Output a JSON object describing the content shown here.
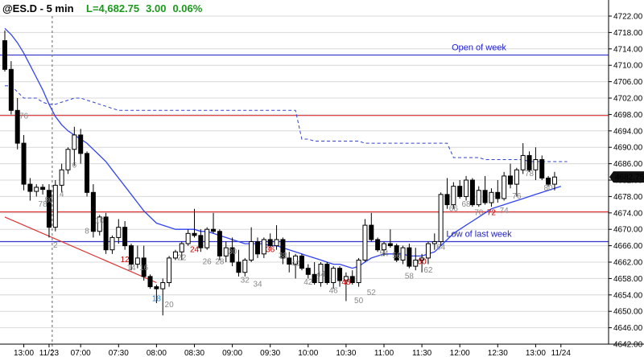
{
  "chart_data": {
    "type": "candlestick",
    "symbol": "@ES.D",
    "interval": "5 min",
    "last_label": "L=4,682.75",
    "change": "3.00",
    "change_pct": "0.06%",
    "last_price_tag": "4682.75",
    "y_ticks": [
      "4642.00",
      "4646.00",
      "4650.00",
      "4654.00",
      "4658.00",
      "4662.00",
      "4666.00",
      "4670.00",
      "4674.00",
      "4678.00",
      "4682.00",
      "4686.00",
      "4690.00",
      "4694.00",
      "4698.00",
      "4702.00",
      "4706.00",
      "4710.00",
      "4714.00",
      "4718.00",
      "4722.00"
    ],
    "ylim": [
      4642,
      4722
    ],
    "x_ticks": [
      {
        "label": "13:00",
        "bar": 3
      },
      {
        "label": "11/23",
        "bar": 7
      },
      {
        "label": "07:00",
        "bar": 12
      },
      {
        "label": "07:30",
        "bar": 18
      },
      {
        "label": "08:00",
        "bar": 24
      },
      {
        "label": "08:30",
        "bar": 30
      },
      {
        "label": "09:00",
        "bar": 36
      },
      {
        "label": "09:30",
        "bar": 42
      },
      {
        "label": "10:00",
        "bar": 48
      },
      {
        "label": "10:30",
        "bar": 54
      },
      {
        "label": "11:00",
        "bar": 60
      },
      {
        "label": "11:30",
        "bar": 66
      },
      {
        "label": "12:00",
        "bar": 72
      },
      {
        "label": "12:30",
        "bar": 78
      },
      {
        "label": "13:00",
        "bar": 84
      },
      {
        "label": "11/24",
        "bar": 88
      }
    ],
    "session_break_bar": 7.5,
    "horizontal_lines": [
      {
        "price": 4712.5,
        "color": "#3333cc",
        "label": "Open of week"
      },
      {
        "price": 4697.75,
        "color": "#dd3333",
        "label": ""
      },
      {
        "price": 4674.25,
        "color": "#dd3333",
        "label": ""
      },
      {
        "price": 4667.0,
        "color": "#3333cc",
        "label": "Low of last week"
      }
    ],
    "trendline": {
      "from": {
        "bar": 0,
        "price": 4673.0
      },
      "to": {
        "bar": 24,
        "price": 4657.0
      },
      "color": "#dd3333"
    },
    "ohlc": [
      [
        4716.0,
        4718.5,
        4708.5,
        4709.0
      ],
      [
        4709.0,
        4711.0,
        4698.0,
        4699.0
      ],
      [
        4699.0,
        4702.0,
        4689.5,
        4691.0
      ],
      [
        4691.0,
        4693.0,
        4679.5,
        4681.0
      ],
      [
        4681.0,
        4682.5,
        4677.0,
        4679.25
      ],
      [
        4679.25,
        4681.0,
        4678.0,
        4680.25
      ],
      [
        4680.25,
        4681.0,
        4678.5,
        4679.75
      ],
      [
        4679.5,
        4681.0,
        4668.0,
        4670.5
      ],
      [
        4670.5,
        4682.0,
        4669.5,
        4680.75
      ],
      [
        4680.75,
        4686.0,
        4679.0,
        4684.5
      ],
      [
        4684.5,
        4690.0,
        4683.5,
        4689.5
      ],
      [
        4689.5,
        4695.0,
        4685.5,
        4693.0
      ],
      [
        4693.0,
        4694.5,
        4686.0,
        4688.5
      ],
      [
        4688.5,
        4689.0,
        4678.0,
        4679.0
      ],
      [
        4679.0,
        4681.0,
        4668.0,
        4669.5
      ],
      [
        4669.5,
        4673.5,
        4668.5,
        4673.0
      ],
      [
        4673.0,
        4674.0,
        4664.0,
        4665.0
      ],
      [
        4665.0,
        4668.5,
        4664.0,
        4668.0
      ],
      [
        4668.0,
        4672.5,
        4666.5,
        4670.5
      ],
      [
        4670.5,
        4672.0,
        4665.0,
        4666.0
      ],
      [
        4666.0,
        4666.5,
        4660.0,
        4661.5
      ],
      [
        4661.5,
        4666.0,
        4660.5,
        4663.0
      ],
      [
        4663.0,
        4666.0,
        4657.5,
        4658.5
      ],
      [
        4658.5,
        4659.0,
        4655.5,
        4656.0
      ],
      [
        4656.0,
        4656.5,
        4652.0,
        4655.5
      ],
      [
        4655.5,
        4658.0,
        4649.0,
        4657.0
      ],
      [
        4657.0,
        4663.5,
        4656.0,
        4663.0
      ],
      [
        4663.0,
        4665.0,
        4662.5,
        4664.5
      ],
      [
        4664.5,
        4667.0,
        4662.5,
        4666.5
      ],
      [
        4666.5,
        4670.0,
        4666.0,
        4669.0
      ],
      [
        4669.0,
        4675.0,
        4668.0,
        4668.5
      ],
      [
        4668.5,
        4670.0,
        4664.5,
        4665.5
      ],
      [
        4665.5,
        4670.5,
        4665.0,
        4670.0
      ],
      [
        4670.0,
        4674.0,
        4669.0,
        4669.5
      ],
      [
        4669.5,
        4670.0,
        4662.5,
        4663.5
      ],
      [
        4663.5,
        4667.0,
        4662.0,
        4665.5
      ],
      [
        4665.5,
        4668.0,
        4661.0,
        4662.0
      ],
      [
        4662.0,
        4665.0,
        4658.5,
        4659.5
      ],
      [
        4659.5,
        4663.0,
        4658.5,
        4662.5
      ],
      [
        4662.5,
        4670.5,
        4662.0,
        4667.0
      ],
      [
        4667.0,
        4668.0,
        4663.0,
        4664.0
      ],
      [
        4664.0,
        4668.0,
        4663.0,
        4667.5
      ],
      [
        4667.5,
        4669.0,
        4665.5,
        4666.0
      ],
      [
        4666.0,
        4671.0,
        4665.0,
        4667.5
      ],
      [
        4667.5,
        4668.0,
        4661.5,
        4663.0
      ],
      [
        4663.0,
        4664.5,
        4659.5,
        4661.5
      ],
      [
        4661.5,
        4664.0,
        4658.0,
        4663.5
      ],
      [
        4663.5,
        4664.0,
        4660.0,
        4660.5
      ],
      [
        4660.5,
        4661.5,
        4658.0,
        4659.0
      ],
      [
        4659.0,
        4662.0,
        4656.5,
        4657.0
      ],
      [
        4657.0,
        4662.0,
        4656.0,
        4661.5
      ],
      [
        4661.5,
        4662.0,
        4656.5,
        4657.0
      ],
      [
        4657.0,
        4661.0,
        4655.5,
        4660.5
      ],
      [
        4660.5,
        4661.0,
        4656.0,
        4657.5
      ],
      [
        4657.5,
        4659.5,
        4652.5,
        4658.5
      ],
      [
        4658.5,
        4660.0,
        4656.5,
        4657.0
      ],
      [
        4657.0,
        4663.0,
        4656.0,
        4662.5
      ],
      [
        4662.5,
        4672.5,
        4662.0,
        4671.0
      ],
      [
        4671.0,
        4674.0,
        4667.0,
        4667.5
      ],
      [
        4667.5,
        4668.0,
        4664.5,
        4665.0
      ],
      [
        4665.0,
        4667.0,
        4663.5,
        4666.5
      ],
      [
        4666.5,
        4670.0,
        4665.5,
        4666.0
      ],
      [
        4666.0,
        4666.5,
        4662.0,
        4662.5
      ],
      [
        4662.5,
        4666.0,
        4661.5,
        4665.5
      ],
      [
        4665.5,
        4666.5,
        4660.5,
        4661.0
      ],
      [
        4661.0,
        4665.5,
        4660.0,
        4662.5
      ],
      [
        4662.5,
        4664.0,
        4659.5,
        4663.0
      ],
      [
        4663.0,
        4667.0,
        4661.5,
        4666.5
      ],
      [
        4666.5,
        4669.0,
        4665.0,
        4667.0
      ],
      [
        4667.0,
        4679.0,
        4666.0,
        4678.5
      ],
      [
        4678.5,
        4682.5,
        4675.0,
        4676.0
      ],
      [
        4676.0,
        4681.5,
        4675.0,
        4680.5
      ],
      [
        4680.5,
        4682.0,
        4677.5,
        4678.0
      ],
      [
        4678.0,
        4683.0,
        4677.0,
        4682.0
      ],
      [
        4682.0,
        4682.5,
        4675.5,
        4676.0
      ],
      [
        4676.0,
        4680.5,
        4675.5,
        4679.5
      ],
      [
        4679.5,
        4683.0,
        4676.0,
        4676.5
      ],
      [
        4676.5,
        4680.0,
        4675.5,
        4679.0
      ],
      [
        4679.0,
        4682.0,
        4676.5,
        4677.5
      ],
      [
        4677.5,
        4684.0,
        4677.0,
        4683.0
      ],
      [
        4683.0,
        4686.0,
        4680.0,
        4681.0
      ],
      [
        4681.0,
        4685.0,
        4678.0,
        4684.5
      ],
      [
        4684.5,
        4691.0,
        4683.5,
        4688.0
      ],
      [
        4688.0,
        4689.0,
        4684.0,
        4684.5
      ],
      [
        4684.5,
        4690.0,
        4682.0,
        4687.0
      ],
      [
        4687.0,
        4688.0,
        4682.0,
        4682.5
      ],
      [
        4682.5,
        4683.0,
        4680.5,
        4681.0
      ],
      [
        4681.0,
        4684.0,
        4679.5,
        4682.75
      ]
    ],
    "ema": [
      4719.0,
      4717.5,
      4715.5,
      4713.0,
      4710.0,
      4707.0,
      4704.0,
      4700.5,
      4697.5,
      4695.5,
      4694.0,
      4693.0,
      4692.0,
      4691.0,
      4689.5,
      4688.0,
      4686.5,
      4684.5,
      4682.5,
      4680.5,
      4678.5,
      4676.5,
      4674.5,
      4673.0,
      4671.5,
      4671.0,
      4670.5,
      4670.0,
      4670.0,
      4670.0,
      4670.0,
      4669.5,
      4669.5,
      4669.0,
      4668.5,
      4668.0,
      4667.5,
      4667.0,
      4666.5,
      4666.5,
      4666.5,
      4666.5,
      4666.0,
      4666.0,
      4665.5,
      4665.0,
      4664.5,
      4664.0,
      4663.5,
      4663.0,
      4662.5,
      4662.0,
      4661.5,
      4661.5,
      4661.0,
      4660.5,
      4661.0,
      4662.0,
      4663.0,
      4663.5,
      4664.0,
      4664.0,
      4664.0,
      4664.0,
      4663.5,
      4663.5,
      4663.5,
      4664.0,
      4664.5,
      4666.0,
      4667.5,
      4669.0,
      4670.0,
      4671.0,
      4672.0,
      4673.0,
      4674.0,
      4675.0,
      4675.5,
      4676.0,
      4676.5,
      4677.0,
      4677.5,
      4678.0,
      4678.5,
      4679.0,
      4679.5,
      4680.0,
      4680.5
    ],
    "ema_dashed": [
      4705.0,
      4705.0,
      4703.5,
      4702.0,
      4702.0,
      4702.0,
      4701.0,
      4700.5,
      4700.5,
      4701.0,
      4701.5,
      4702.0,
      4702.0,
      4701.5,
      4701.0,
      4700.5,
      4700.0,
      4699.5,
      4699.0,
      4699.0,
      4699.0,
      4699.0,
      4699.0,
      4699.0,
      4699.0,
      4699.0,
      4699.0,
      4699.0,
      4699.0,
      4699.0,
      4699.0,
      4699.0,
      4699.0,
      4699.0,
      4699.0,
      4699.0,
      4699.0,
      4699.0,
      4699.0,
      4699.0,
      4699.0,
      4699.0,
      4699.0,
      4699.0,
      4699.0,
      4699.0,
      4699.0,
      4692.0,
      4692.0,
      4691.5,
      4691.5,
      4691.5,
      4691.5,
      4691.5,
      4691.5,
      4691.5,
      4691.5,
      4691.0,
      4691.0,
      4691.0,
      4691.0,
      4691.0,
      4691.0,
      4691.0,
      4691.0,
      4691.0,
      4691.0,
      4691.0,
      4691.0,
      4691.0,
      4691.0,
      4687.5,
      4687.5,
      4687.5,
      4687.5,
      4687.5,
      4687.0,
      4687.0,
      4687.0,
      4687.0,
      4687.0,
      4687.0,
      4687.0,
      4686.5,
      4686.5,
      4686.5,
      4686.5,
      4686.5,
      4686.5,
      4686.5
    ],
    "bar_labels": [
      {
        "bar": 3,
        "text": "76",
        "price": 4697.0,
        "color": "#888888"
      },
      {
        "bar": 6,
        "text": "78",
        "price": 4675.5,
        "color": "#888888"
      },
      {
        "bar": 7,
        "text": "80",
        "price": 4676.5,
        "color": "#888888"
      },
      {
        "bar": 8,
        "text": "2",
        "price": 4665.5,
        "color": "#888888"
      },
      {
        "bar": 9,
        "text": "4",
        "price": 4678.0,
        "color": "#888888"
      },
      {
        "bar": 11,
        "text": "6",
        "price": 4685.0,
        "color": "#888888"
      },
      {
        "bar": 13,
        "text": "8",
        "price": 4669.0,
        "color": "#888888"
      },
      {
        "bar": 15,
        "text": "10",
        "price": 4671.5,
        "color": "#888888"
      },
      {
        "bar": 19,
        "text": "12",
        "price": 4662.0,
        "color": "#cc0000"
      },
      {
        "bar": 20,
        "text": "14",
        "price": 4660.0,
        "color": "#888888"
      },
      {
        "bar": 22,
        "text": "16",
        "price": 4660.0,
        "color": "#888888"
      },
      {
        "bar": 24,
        "text": "18",
        "price": 4652.5,
        "color": "#2288dd"
      },
      {
        "bar": 26,
        "text": "20",
        "price": 4651.0,
        "color": "#888888"
      },
      {
        "bar": 28,
        "text": "22",
        "price": 4662.5,
        "color": "#888888"
      },
      {
        "bar": 30,
        "text": "24",
        "price": 4664.5,
        "color": "#cc0000"
      },
      {
        "bar": 32,
        "text": "26",
        "price": 4661.5,
        "color": "#888888"
      },
      {
        "bar": 34,
        "text": "28",
        "price": 4661.5,
        "color": "#888888"
      },
      {
        "bar": 36,
        "text": "30",
        "price": 4664.0,
        "color": "#888888"
      },
      {
        "bar": 38,
        "text": "32",
        "price": 4657.0,
        "color": "#888888"
      },
      {
        "bar": 40,
        "text": "34",
        "price": 4656.0,
        "color": "#888888"
      },
      {
        "bar": 42,
        "text": "36",
        "price": 4664.5,
        "color": "#cc0000"
      },
      {
        "bar": 44,
        "text": "38",
        "price": 4663.0,
        "color": "#888888"
      },
      {
        "bar": 46,
        "text": "40",
        "price": 4661.0,
        "color": "#888888"
      },
      {
        "bar": 48,
        "text": "42",
        "price": 4656.5,
        "color": "#888888"
      },
      {
        "bar": 50,
        "text": "44",
        "price": 4658.5,
        "color": "#888888"
      },
      {
        "bar": 52,
        "text": "46",
        "price": 4654.5,
        "color": "#888888"
      },
      {
        "bar": 54,
        "text": "48",
        "price": 4656.5,
        "color": "#cc0000"
      },
      {
        "bar": 56,
        "text": "50",
        "price": 4652.0,
        "color": "#888888"
      },
      {
        "bar": 58,
        "text": "52",
        "price": 4654.0,
        "color": "#888888"
      },
      {
        "bar": 60,
        "text": "54",
        "price": 4663.5,
        "color": "#888888"
      },
      {
        "bar": 62,
        "text": "56",
        "price": 4663.0,
        "color": "#888888"
      },
      {
        "bar": 64,
        "text": "58",
        "price": 4658.0,
        "color": "#888888"
      },
      {
        "bar": 66,
        "text": "60",
        "price": 4661.5,
        "color": "#cc0000"
      },
      {
        "bar": 67,
        "text": "62",
        "price": 4659.5,
        "color": "#888888"
      },
      {
        "bar": 69,
        "text": "64",
        "price": 4665.0,
        "color": "#888888"
      },
      {
        "bar": 71,
        "text": "66",
        "price": 4674.5,
        "color": "#888888"
      },
      {
        "bar": 73,
        "text": "68",
        "price": 4675.5,
        "color": "#888888"
      },
      {
        "bar": 75,
        "text": "70",
        "price": 4673.5,
        "color": "#888888"
      },
      {
        "bar": 77,
        "text": "72",
        "price": 4673.5,
        "color": "#cc0000"
      },
      {
        "bar": 79,
        "text": "74",
        "price": 4674.0,
        "color": "#888888"
      },
      {
        "bar": 81,
        "text": "76",
        "price": 4677.5,
        "color": "#888888"
      },
      {
        "bar": 83,
        "text": "78",
        "price": 4683.0,
        "color": "#888888"
      },
      {
        "bar": 86,
        "text": "80",
        "price": 4679.5,
        "color": "#888888"
      }
    ]
  }
}
